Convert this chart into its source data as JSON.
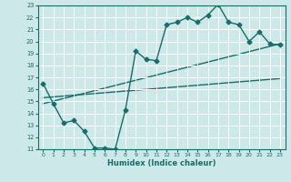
{
  "xlabel": "Humidex (Indice chaleur)",
  "background_color": "#cce8e8",
  "grid_color": "#ffffff",
  "line_color": "#1a6b6b",
  "xlim": [
    -0.5,
    23.5
  ],
  "ylim": [
    11,
    23
  ],
  "xticks": [
    0,
    1,
    2,
    3,
    4,
    5,
    6,
    7,
    8,
    9,
    10,
    11,
    12,
    13,
    14,
    15,
    16,
    17,
    18,
    19,
    20,
    21,
    22,
    23
  ],
  "yticks": [
    11,
    12,
    13,
    14,
    15,
    16,
    17,
    18,
    19,
    20,
    21,
    22,
    23
  ],
  "series1_x": [
    0,
    1,
    2,
    3,
    4,
    5,
    6,
    7,
    8,
    9,
    10,
    11,
    12,
    13,
    14,
    15,
    16,
    17,
    18,
    19,
    20,
    21,
    22,
    23
  ],
  "series1_y": [
    16.5,
    14.8,
    13.2,
    13.4,
    12.5,
    11.1,
    11.1,
    11.0,
    14.3,
    19.2,
    18.5,
    18.4,
    21.4,
    21.6,
    22.0,
    21.6,
    22.2,
    23.1,
    21.6,
    21.4,
    20.0,
    20.8,
    19.8,
    19.7
  ],
  "series2_x": [
    0,
    23
  ],
  "series2_y": [
    14.8,
    19.8
  ],
  "series3_x": [
    0,
    23
  ],
  "series3_y": [
    15.3,
    16.9
  ],
  "marker": "D",
  "markersize": 2.5,
  "linewidth": 1.0
}
